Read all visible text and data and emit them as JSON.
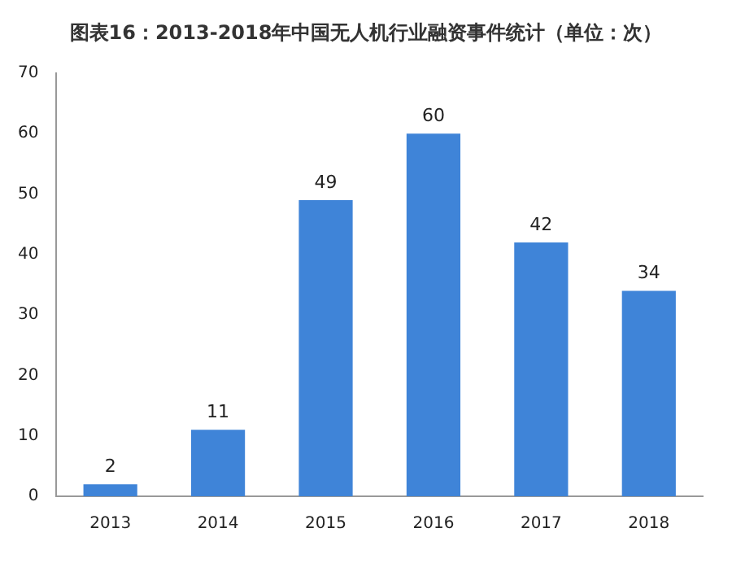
{
  "chart_data": {
    "type": "bar",
    "title": "图表16：2013-2018年中国无人机行业融资事件统计（单位：次）",
    "categories": [
      "2013",
      "2014",
      "2015",
      "2016",
      "2017",
      "2018"
    ],
    "values": [
      2,
      11,
      49,
      60,
      42,
      34
    ],
    "color": "#3f84d8",
    "ylim": [
      0,
      70
    ],
    "yticks": [
      0,
      10,
      20,
      30,
      40,
      50,
      60,
      70
    ],
    "grid": false,
    "data_labels": true
  }
}
